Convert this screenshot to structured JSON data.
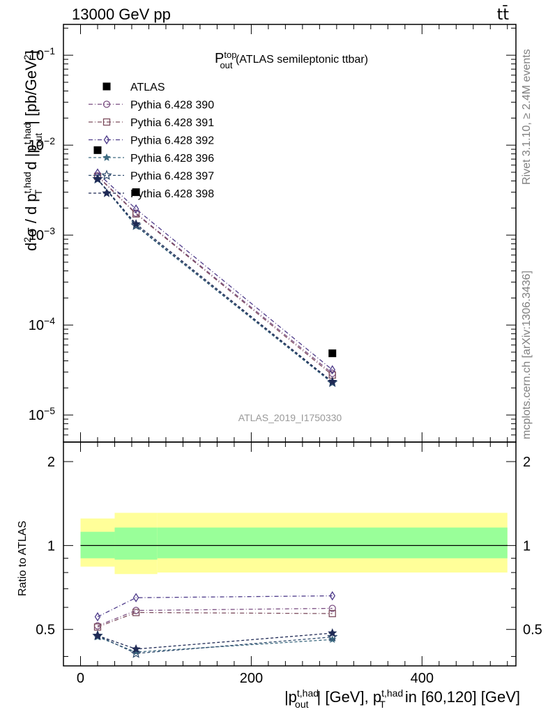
{
  "header": {
    "energy_label": "13000 GeV pp",
    "process_label": "tt̄"
  },
  "side_labels": {
    "rivet": "Rivet 3.1.10, ≥ 2.4M events",
    "mcplots": "mcplots.cern.ch [arXiv:1306.3436]"
  },
  "plot_title": {
    "main": "P",
    "sup": "top",
    "sub": "out",
    "rest": " (ATLAS semileptonic ttbar)"
  },
  "watermark": "ATLAS_2019_I1750330",
  "y_axis_main": {
    "label": "d²σ / d p_T^{t,had} d |p_out^{t,had}| [pb/GeV²]",
    "parts": {
      "a": "d",
      "b": "2",
      "c": "σ / d p",
      "d": "t,had",
      "e": "T",
      "f": " d |p",
      "g": "t,had",
      "h": "out",
      "i": "| [pb/GeV",
      "j": "2",
      "k": "]"
    },
    "ticks": [
      {
        "base": "10",
        "exp": "−1"
      },
      {
        "base": "10",
        "exp": "−2"
      },
      {
        "base": "10",
        "exp": "−3"
      },
      {
        "base": "10",
        "exp": "−4"
      },
      {
        "base": "10",
        "exp": "−5"
      }
    ]
  },
  "y_axis_ratio": {
    "label": "Ratio to ATLAS",
    "ticks": [
      "2",
      "1",
      "0.5"
    ]
  },
  "x_axis": {
    "label_parts": {
      "a": "|p",
      "b": "t,had",
      "c": "out",
      "d": "| [GeV], p",
      "e": "t,had",
      "f": "T",
      "g": " in [60,120] [GeV]"
    },
    "ticks": [
      "0",
      "200",
      "400"
    ]
  },
  "legend": [
    {
      "name": "ATLAS",
      "color": "#000000",
      "marker": "filled-square"
    },
    {
      "name": "Pythia 6.428 390",
      "color": "#7b4f82",
      "marker": "open-circle"
    },
    {
      "name": "Pythia 6.428 391",
      "color": "#7d4d5e",
      "marker": "open-square"
    },
    {
      "name": "Pythia 6.428 392",
      "color": "#4e3b8a",
      "marker": "open-diamond"
    },
    {
      "name": "Pythia 6.428 396",
      "color": "#3d6a80",
      "marker": "star"
    },
    {
      "name": "Pythia 6.428 397",
      "color": "#2f4c6e",
      "marker": "open-star"
    },
    {
      "name": "Pythia 6.428 398",
      "color": "#1f2a55",
      "marker": "filled-star"
    }
  ],
  "colors": {
    "band_outer": "#ffff99",
    "band_inner": "#99ff99"
  },
  "chart_data": {
    "type": "scatter",
    "x_scale": "linear",
    "y_scale": "log",
    "xlim": [
      -20,
      510
    ],
    "ylim_main": [
      5e-06,
      0.22
    ],
    "ylim_ratio": [
      0.37,
      2.35
    ],
    "x": [
      20,
      65,
      295
    ],
    "data": {
      "name": "ATLAS",
      "y": [
        0.0088,
        0.003,
        4.85e-05
      ]
    },
    "series": [
      {
        "name": "Pythia 6.428 390",
        "y": [
          0.00455,
          0.00175,
          2.9e-05
        ]
      },
      {
        "name": "Pythia 6.428 391",
        "y": [
          0.0045,
          0.00172,
          2.78e-05
        ]
      },
      {
        "name": "Pythia 6.428 392",
        "y": [
          0.0049,
          0.00195,
          3.18e-05
        ]
      },
      {
        "name": "Pythia 6.428 396",
        "y": [
          0.00415,
          0.00126,
          2.26e-05
        ]
      },
      {
        "name": "Pythia 6.428 397",
        "y": [
          0.0042,
          0.00128,
          2.3e-05
        ]
      },
      {
        "name": "Pythia 6.428 398",
        "y": [
          0.0042,
          0.00133,
          2.35e-05
        ]
      }
    ],
    "ratio_series": [
      {
        "name": "Pythia 6.428 390",
        "y": [
          0.515,
          0.585,
          0.595
        ]
      },
      {
        "name": "Pythia 6.428 391",
        "y": [
          0.51,
          0.575,
          0.57
        ]
      },
      {
        "name": "Pythia 6.428 392",
        "y": [
          0.555,
          0.65,
          0.66
        ]
      },
      {
        "name": "Pythia 6.428 396",
        "y": [
          0.47,
          0.415,
          0.46
        ]
      },
      {
        "name": "Pythia 6.428 397",
        "y": [
          0.475,
          0.41,
          0.47
        ]
      },
      {
        "name": "Pythia 6.428 398",
        "y": [
          0.475,
          0.425,
          0.485
        ]
      }
    ],
    "uncertainty_band": [
      {
        "x": [
          0,
          40
        ],
        "inner": [
          0.9,
          1.12
        ],
        "outer": [
          0.84,
          1.25
        ]
      },
      {
        "x": [
          40,
          90
        ],
        "inner": [
          0.89,
          1.16
        ],
        "outer": [
          0.79,
          1.31
        ]
      },
      {
        "x": [
          90,
          500
        ],
        "inner": [
          0.9,
          1.16
        ],
        "outer": [
          0.8,
          1.31
        ]
      }
    ]
  }
}
